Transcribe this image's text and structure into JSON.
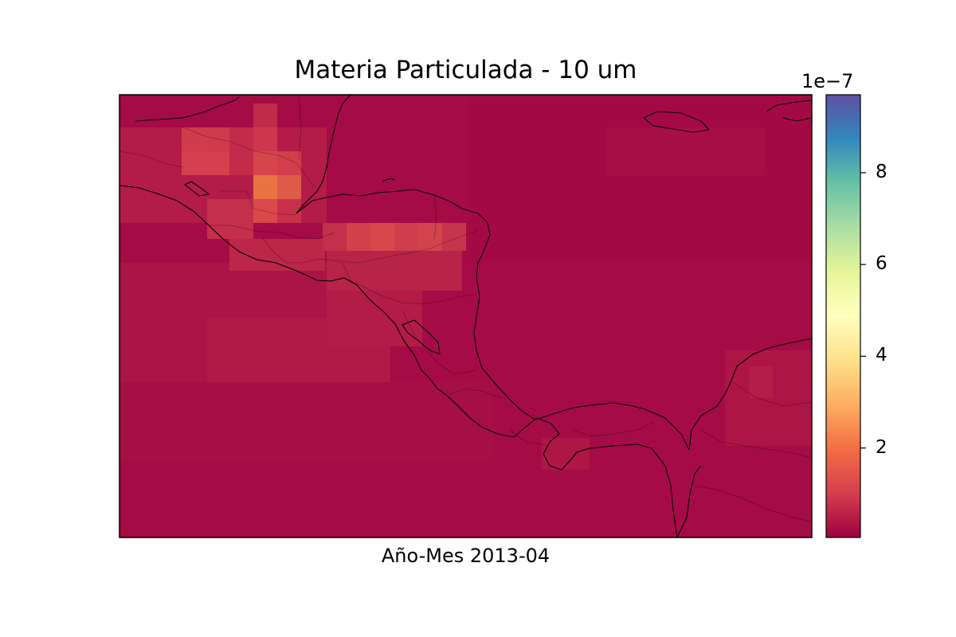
{
  "figure": {
    "title": "Materia Particulada - 10 um",
    "xlabel": "Año-Mes 2013-04"
  },
  "colorbar": {
    "exponent_label": "1e−7",
    "ticks": [
      "2",
      "4",
      "6",
      "8"
    ],
    "tick_values": [
      2,
      4,
      6,
      8
    ],
    "min": 0.05,
    "max": 9.7,
    "colormap": "Spectral",
    "colors": [
      "#9e0142",
      "#d53e4f",
      "#f46d43",
      "#fdae61",
      "#fee08b",
      "#ffffbf",
      "#e6f598",
      "#abdda4",
      "#66c2a5",
      "#3288bd",
      "#5e4fa2"
    ]
  },
  "map": {
    "background_color": "#a50b44",
    "land_color": "#a71246",
    "hotspot_colors": [
      "#c92e4a",
      "#d23a4c",
      "#e05a4a",
      "#ea7346"
    ]
  }
}
